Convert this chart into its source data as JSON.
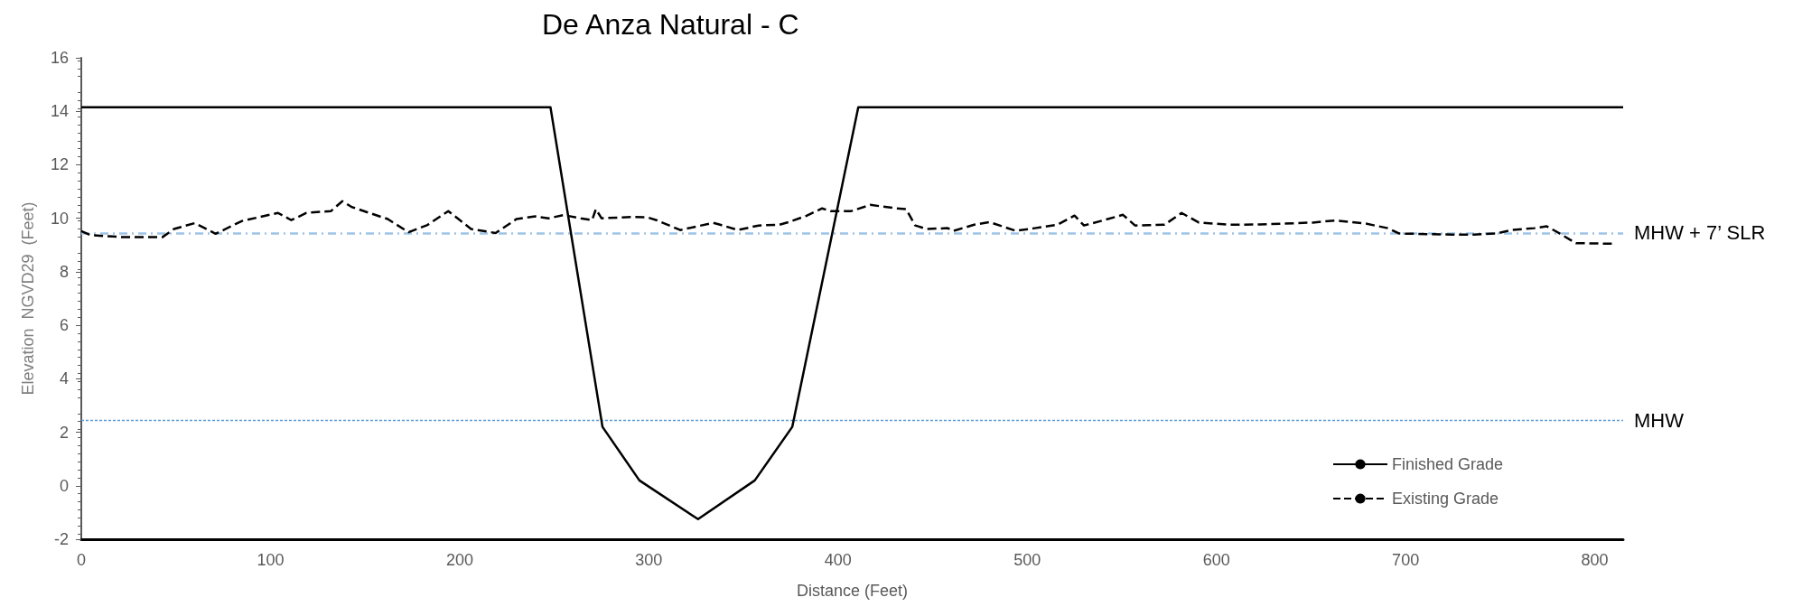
{
  "chart_data": {
    "type": "line",
    "title": "De Anza Natural - C",
    "xlabel": "Distance (Feet)",
    "ylabel": "Elevation  NGVD29  (Feet)",
    "xlim": [
      0,
      815
    ],
    "xticks": [
      0,
      100,
      200,
      300,
      400,
      500,
      600,
      700,
      800
    ],
    "ylim": [
      -2,
      16
    ],
    "yticks": [
      -2,
      0,
      2,
      4,
      6,
      8,
      10,
      12,
      14,
      16
    ],
    "grid": false,
    "legend": "bottom right",
    "marker": "none",
    "series": [
      {
        "name": "Finished Grade",
        "color": "#000000",
        "line_style": "solid",
        "x": [
          0,
          248,
          275.5,
          295,
          326,
          356,
          375.8,
          410.7,
          815
        ],
        "values": [
          14.15,
          14.15,
          2.2,
          0.2,
          -1.25,
          0.2,
          2.2,
          14.15,
          14.15
        ]
      },
      {
        "name": "Existing Grade",
        "color": "#000000",
        "line_style": "dashed",
        "x": [
          0,
          5,
          21,
          43,
          49,
          60,
          71,
          85,
          104,
          111,
          119,
          132,
          138,
          143,
          162,
          173,
          183,
          194,
          206,
          219,
          230,
          240,
          247,
          255,
          264,
          270,
          272,
          275,
          291,
          299,
          304,
          316.6,
          334,
          337.6,
          347,
          358,
          369,
          374,
          383.6,
          391.6,
          396,
          407,
          417,
          431,
          436,
          440.8,
          447,
          458,
          461,
          472,
          480,
          494,
          504,
          516,
          525,
          530,
          539,
          550.6,
          557,
          572.6,
          581.6,
          590.7,
          606.5,
          623,
          651,
          663,
          679,
          690.6,
          696.7,
          724.5,
          736,
          748,
          756,
          768,
          774.6,
          780,
          790,
          809
        ],
        "values": [
          9.52,
          9.37,
          9.3,
          9.3,
          9.6,
          9.82,
          9.42,
          9.9,
          10.2,
          9.93,
          10.2,
          10.27,
          10.64,
          10.42,
          9.97,
          9.48,
          9.75,
          10.27,
          9.6,
          9.45,
          9.97,
          10.07,
          10.0,
          10.12,
          10.0,
          9.93,
          10.34,
          10.0,
          10.05,
          10.04,
          9.93,
          9.56,
          9.83,
          9.76,
          9.56,
          9.73,
          9.76,
          9.86,
          10.1,
          10.37,
          10.27,
          10.27,
          10.5,
          10.37,
          10.34,
          9.73,
          9.6,
          9.63,
          9.53,
          9.76,
          9.86,
          9.53,
          9.63,
          9.76,
          10.1,
          9.73,
          9.9,
          10.13,
          9.73,
          9.76,
          10.2,
          9.84,
          9.76,
          9.77,
          9.84,
          9.92,
          9.8,
          9.63,
          9.43,
          9.39,
          9.39,
          9.43,
          9.56,
          9.63,
          9.7,
          9.49,
          9.07,
          9.05
        ]
      }
    ],
    "ref_lines": [
      {
        "axis": "y",
        "value": 9.45,
        "label": "MHW + 7’ SLR",
        "color": "#9dc3e6",
        "line_style": "dashed"
      },
      {
        "axis": "y",
        "value": 2.45,
        "label": "MHW",
        "color": "#5b9bd5",
        "line_style": "dotted"
      }
    ]
  }
}
